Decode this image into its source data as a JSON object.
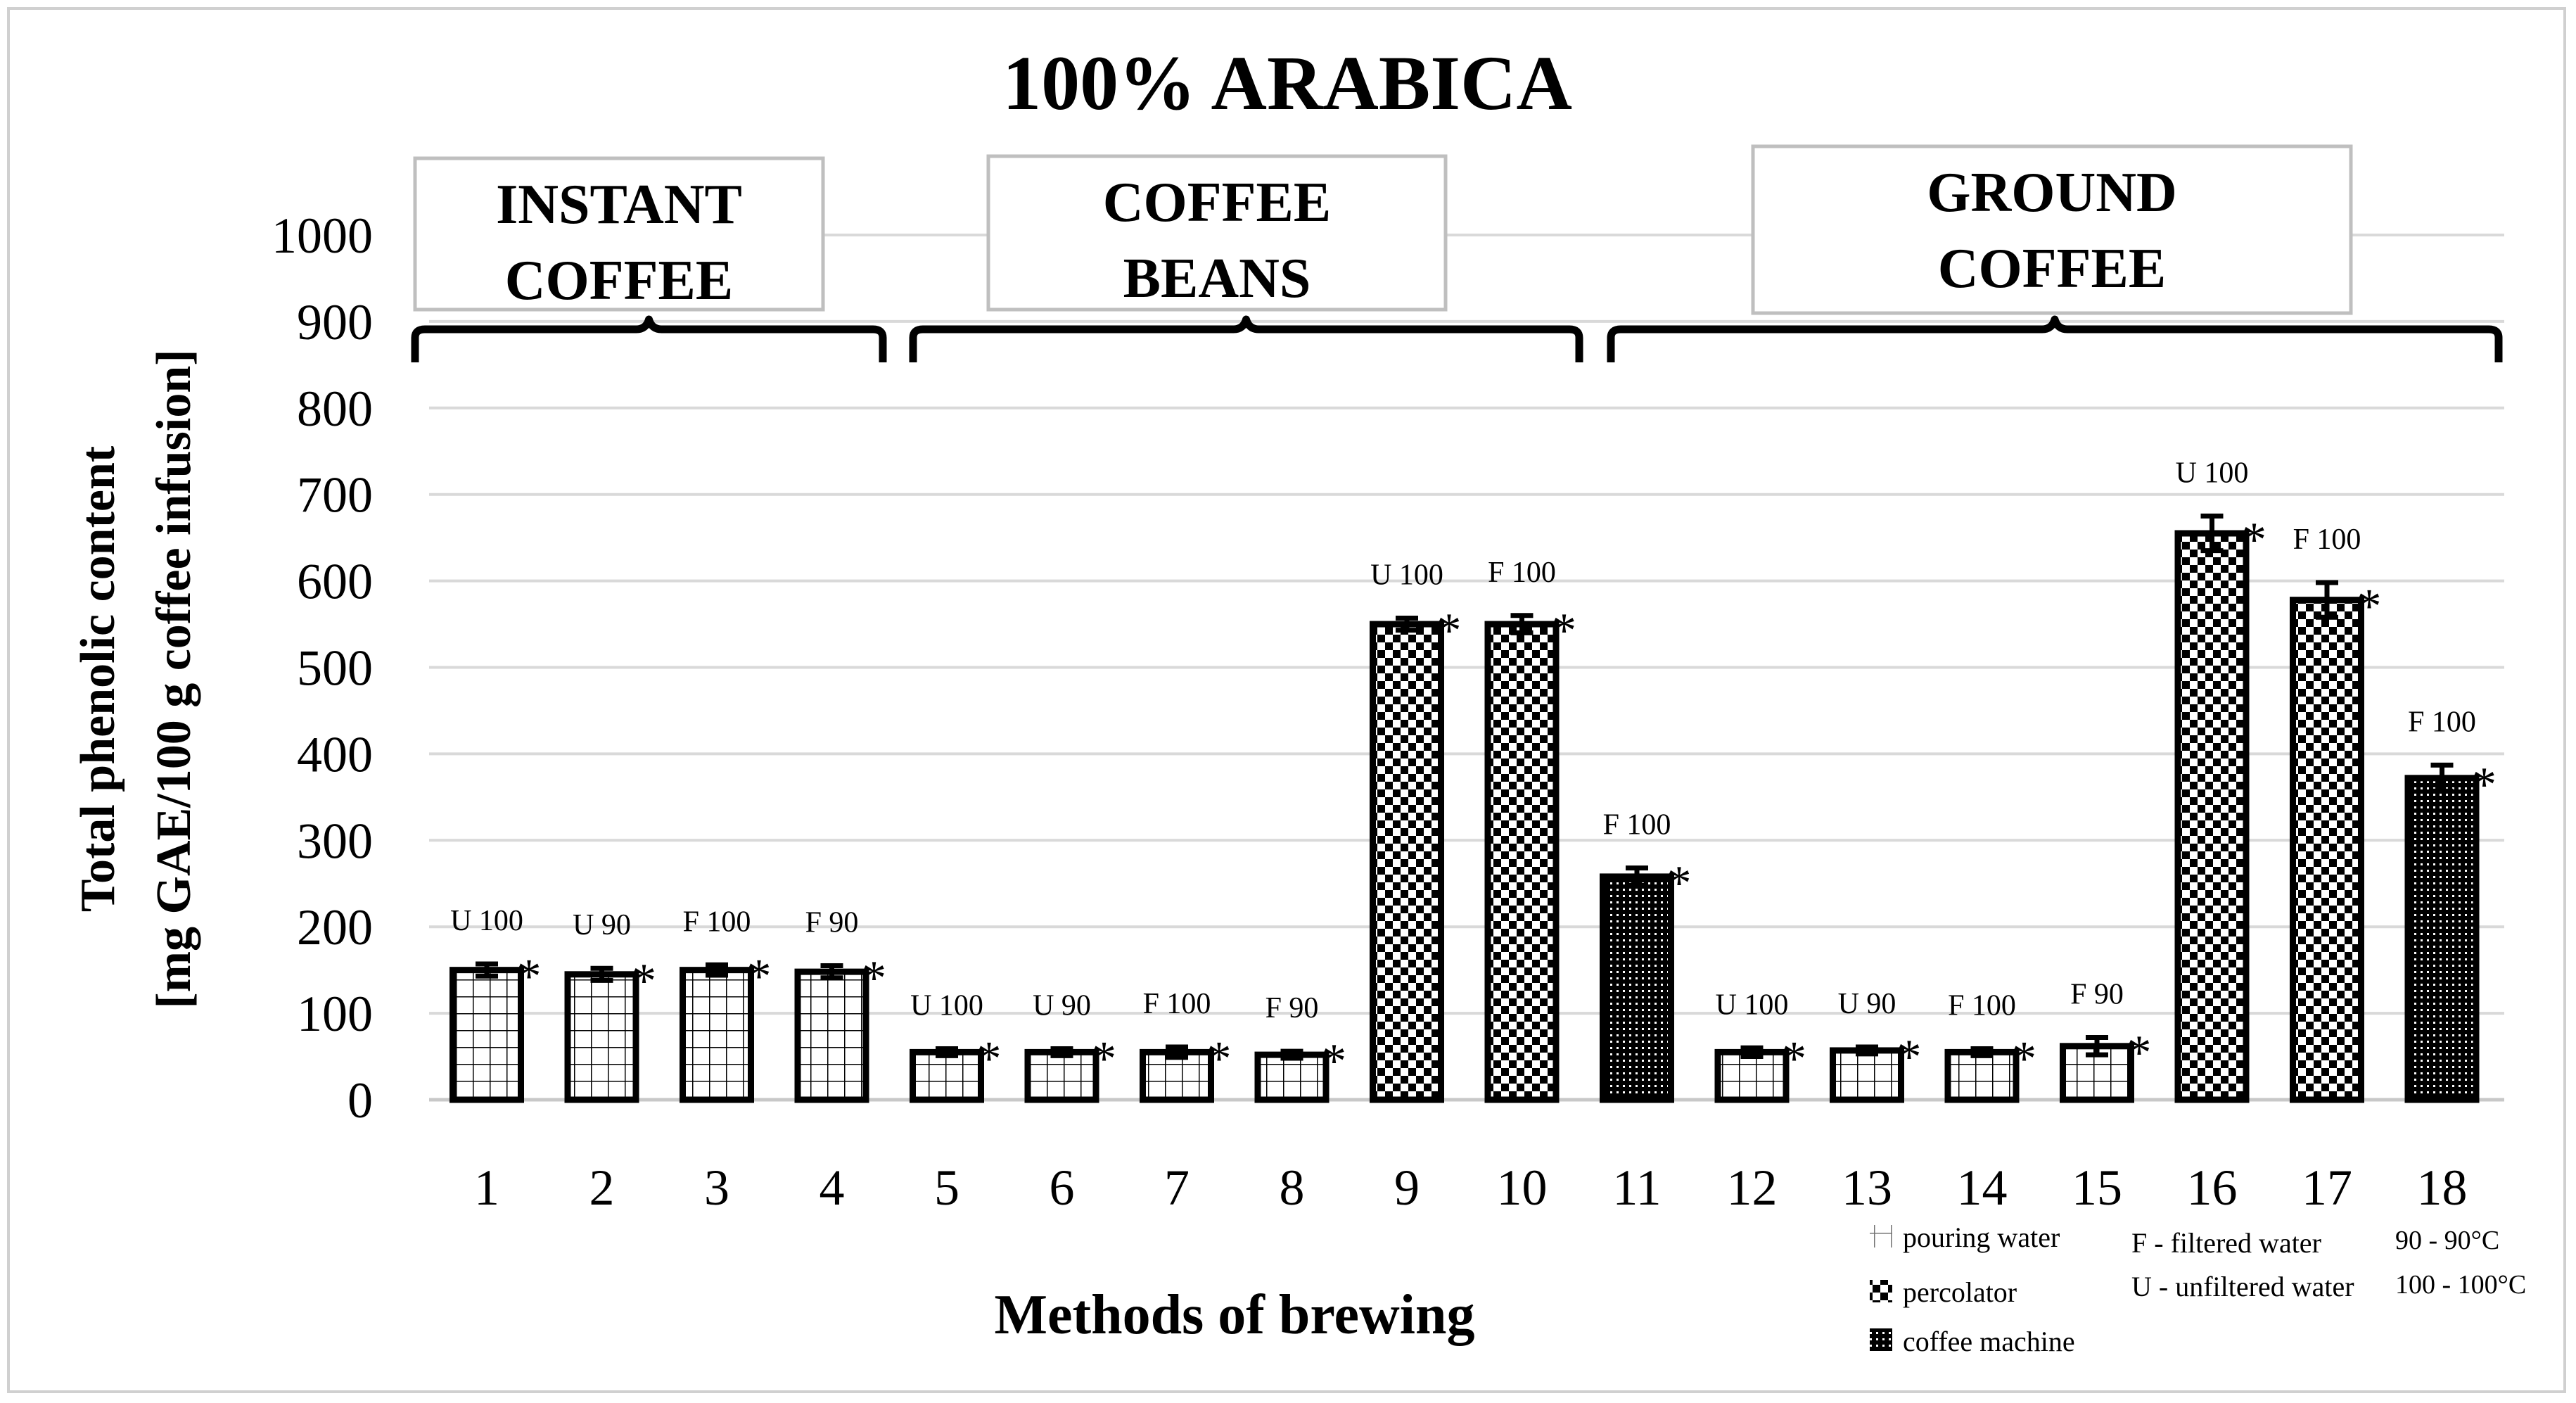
{
  "chart_data": {
    "type": "bar",
    "title": "100% ARABICA",
    "xlabel": "Methods of brewing",
    "ylabel_line1": "Total phenolic content",
    "ylabel_line2": "[mg GAE/100 g coffee infusion]",
    "ylim": [
      0,
      1000
    ],
    "yticks": [
      "0",
      "100",
      "200",
      "300",
      "400",
      "500",
      "600",
      "700",
      "800",
      "900",
      "1000"
    ],
    "grid": true,
    "categories": [
      "1",
      "2",
      "3",
      "4",
      "5",
      "6",
      "7",
      "8",
      "9",
      "10",
      "11",
      "12",
      "13",
      "14",
      "15",
      "16",
      "17",
      "18"
    ],
    "values": [
      150,
      145,
      150,
      148,
      55,
      55,
      55,
      52,
      550,
      550,
      258,
      55,
      57,
      55,
      62,
      655,
      578,
      372
    ],
    "errors": [
      7,
      7,
      6,
      7,
      4,
      4,
      6,
      4,
      7,
      10,
      10,
      5,
      4,
      4,
      10,
      20,
      20,
      15
    ],
    "bar_labels": [
      "U 100",
      "U 90",
      "F 100",
      "F 90",
      "U 100",
      "U 90",
      "F 100",
      "F 90",
      "U 100",
      "F 100",
      "F 100",
      "U 100",
      "U 90",
      "F 100",
      "F 90",
      "U 100",
      "F 100",
      "F 100"
    ],
    "significance_marker": "*",
    "patterns": [
      "grid",
      "grid",
      "grid",
      "grid",
      "grid",
      "grid",
      "grid",
      "grid",
      "checker",
      "checker",
      "dots",
      "grid",
      "grid",
      "grid",
      "grid",
      "checker",
      "checker",
      "dots"
    ],
    "groups": [
      {
        "label_line1": "INSTANT",
        "label_line2": "COFFEE",
        "from": 1,
        "to": 4
      },
      {
        "label_line1": "COFFEE",
        "label_line2": "BEANS",
        "from": 5,
        "to": 10
      },
      {
        "label_line1": "GROUND",
        "label_line2": "COFFEE",
        "from": 11,
        "to": 18
      }
    ],
    "legend": {
      "placement": "bottom-right",
      "patterns": [
        {
          "pattern": "grid",
          "label": "pouring water"
        },
        {
          "pattern": "checker",
          "label": "percolator"
        },
        {
          "pattern": "dots",
          "label": "coffee machine"
        }
      ],
      "water": [
        {
          "label": "F - filtered water"
        },
        {
          "label": "U - unfiltered water"
        }
      ],
      "temperature": [
        {
          "label": "90 - 90°C"
        },
        {
          "label": "100 - 100°C"
        }
      ]
    },
    "colors": {
      "bar_stroke": "#000000",
      "gridline": "#d9d9d9",
      "bracket": "#000000",
      "box_border": "#bfbfbf"
    }
  }
}
